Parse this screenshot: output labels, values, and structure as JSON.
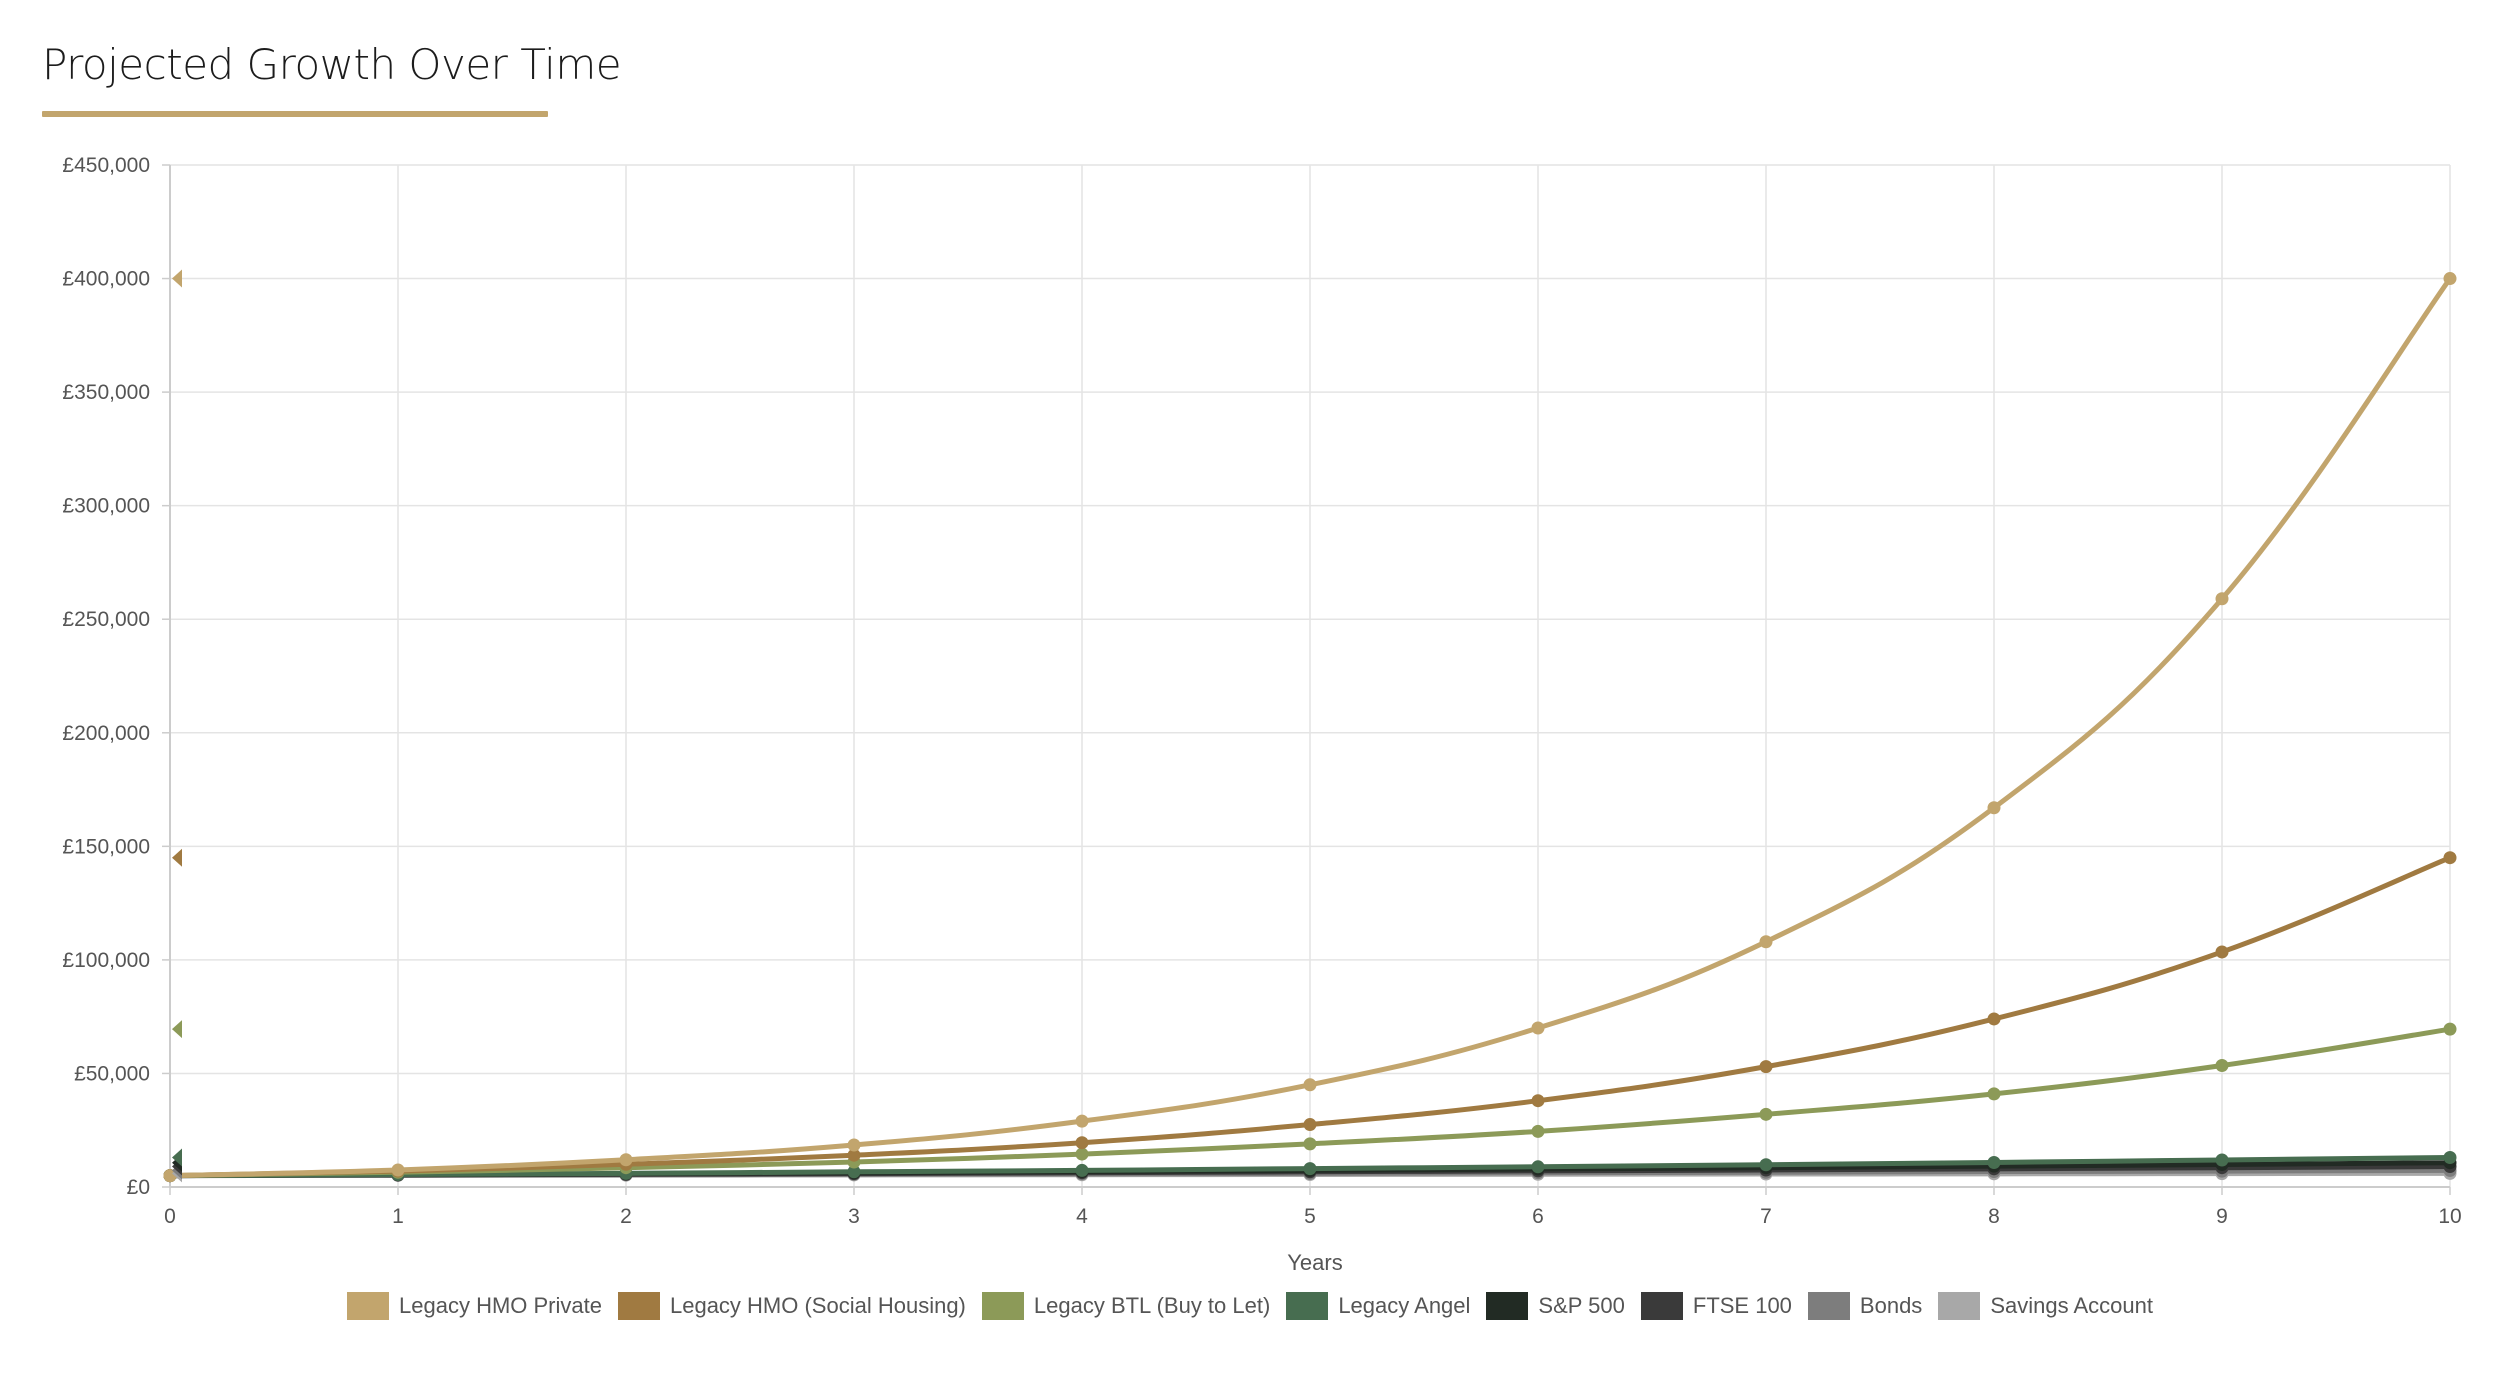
{
  "page": {
    "title": "Projected Growth Over Time"
  },
  "chart_data": {
    "type": "line",
    "title": "",
    "xlabel": "Years",
    "ylabel": "",
    "x": [
      0,
      1,
      2,
      3,
      4,
      5,
      6,
      7,
      8,
      9,
      10
    ],
    "xlim": [
      0,
      10
    ],
    "ylim": [
      0,
      450000
    ],
    "y_ticks": [
      0,
      50000,
      100000,
      150000,
      200000,
      250000,
      300000,
      350000,
      400000,
      450000
    ],
    "y_tick_labels": [
      "£0",
      "£50,000",
      "£100,000",
      "£150,000",
      "£200,000",
      "£250,000",
      "£300,000",
      "£350,000",
      "£400,000",
      "£450,000"
    ],
    "x_tick_labels": [
      "0",
      "1",
      "2",
      "3",
      "4",
      "5",
      "6",
      "7",
      "8",
      "9",
      "10"
    ],
    "grid": true,
    "legend_position": "bottom",
    "series": [
      {
        "name": "Legacy HMO Private",
        "color": "#c2a56d",
        "values": [
          5000,
          7500,
          12000,
          18500,
          29000,
          45000,
          70000,
          108000,
          167000,
          259000,
          400000
        ]
      },
      {
        "name": "Legacy HMO (Social Housing)",
        "color": "#a07a41",
        "values": [
          5000,
          7000,
          10000,
          14000,
          19500,
          27500,
          38000,
          53000,
          74000,
          103500,
          145000
        ]
      },
      {
        "name": "Legacy BTL (Buy to Let)",
        "color": "#8c9a58",
        "values": [
          5000,
          6500,
          8500,
          11000,
          14500,
          19000,
          24500,
          32000,
          41000,
          53500,
          69500
        ]
      },
      {
        "name": "Legacy Angel",
        "color": "#476d50",
        "values": [
          5000,
          5500,
          6000,
          6700,
          7300,
          8100,
          8900,
          9800,
          10800,
          11900,
          13000
        ]
      },
      {
        "name": "S&P 500",
        "color": "#222b24",
        "values": [
          5000,
          5400,
          5800,
          6300,
          6800,
          7300,
          7900,
          8500,
          9200,
          9900,
          10700
        ]
      },
      {
        "name": "FTSE 100",
        "color": "#3a3a3a",
        "values": [
          5000,
          5300,
          5600,
          5900,
          6300,
          6700,
          7100,
          7500,
          8000,
          8500,
          9000
        ]
      },
      {
        "name": "Bonds",
        "color": "#7d7d7d",
        "values": [
          5000,
          5200,
          5400,
          5600,
          5800,
          6000,
          6300,
          6500,
          6800,
          7000,
          7300
        ]
      },
      {
        "name": "Savings Account",
        "color": "#a8a8a8",
        "values": [
          5000,
          5100,
          5200,
          5300,
          5400,
          5500,
          5600,
          5700,
          5800,
          5900,
          6000
        ]
      }
    ]
  }
}
